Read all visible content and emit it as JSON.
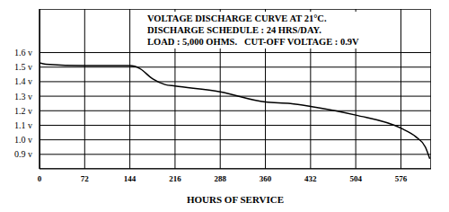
{
  "chart_data": {
    "type": "line",
    "title": "VOLTAGE DISCHARGE CURVE AT 21°C.",
    "annotations": [
      "DISCHARGE SCHEDULE : 24 HRS/DAY.",
      "LOAD : 5,000 OHMS.   CUT-OFF VOLTAGE : 0.9V"
    ],
    "x_label": "HOURS OF SERVICE",
    "x": [
      0,
      10,
      72,
      144,
      160,
      180,
      200,
      216,
      288,
      360,
      400,
      432,
      504,
      576,
      600,
      615,
      622
    ],
    "values": [
      1.53,
      1.52,
      1.51,
      1.51,
      1.49,
      1.42,
      1.38,
      1.37,
      1.33,
      1.26,
      1.25,
      1.23,
      1.17,
      1.08,
      1.02,
      0.95,
      0.87
    ],
    "color": "#000000",
    "xlim": [
      0,
      624
    ],
    "xticks": [
      0,
      72,
      144,
      216,
      288,
      360,
      432,
      504,
      576
    ],
    "ylim": [
      0.8,
      1.9
    ],
    "yticks": [
      {
        "value": 0.9,
        "label": "0.9 v"
      },
      {
        "value": 1.0,
        "label": "1.0 v"
      },
      {
        "value": 1.1,
        "label": "1.1 v"
      },
      {
        "value": 1.2,
        "label": "1.2 v"
      },
      {
        "value": 1.3,
        "label": "1.3 v"
      },
      {
        "value": 1.4,
        "label": "1.4 v"
      },
      {
        "value": 1.5,
        "label": "1.5 v"
      },
      {
        "value": 1.6,
        "label": "1.6 v"
      }
    ],
    "grid": true
  }
}
